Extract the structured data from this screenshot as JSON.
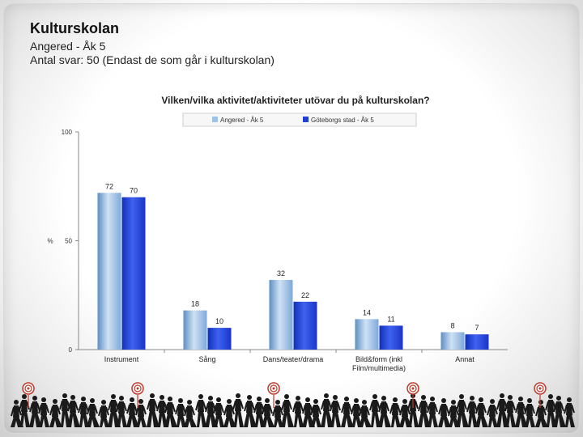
{
  "slide": {
    "title": "Kulturskolan",
    "subtitle_line1": "Angered - Åk 5",
    "subtitle_line2": "Antal svar: 50 (Endast de som går i kulturskolan)"
  },
  "chart_data": {
    "type": "bar",
    "title": "Vilken/vilka aktivitet/aktiviteter utövar du på kulturskolan?",
    "ylabel": "%",
    "xlabel": "",
    "ylim": [
      0,
      100
    ],
    "yticks": [
      0,
      50,
      100
    ],
    "legend_position": "top",
    "categories": [
      [
        "Instrument"
      ],
      [
        "Sång"
      ],
      [
        "Dans/teater/drama"
      ],
      [
        "Bild&form (inkl",
        "Film/multimedia)"
      ],
      [
        "Annat"
      ]
    ],
    "series": [
      {
        "name": "Angered - Åk 5",
        "values": [
          72,
          18,
          32,
          14,
          8
        ],
        "color": "#9dc3e6"
      },
      {
        "name": "Göteborgs stad - Åk 5",
        "values": [
          70,
          10,
          22,
          11,
          7
        ],
        "color": "#1f3fd6"
      }
    ]
  },
  "colors": {
    "accent_light": "#9dc3e6",
    "accent_dark": "#1f3fd6"
  },
  "footer": {
    "decoration": "walking-people-silhouettes"
  }
}
